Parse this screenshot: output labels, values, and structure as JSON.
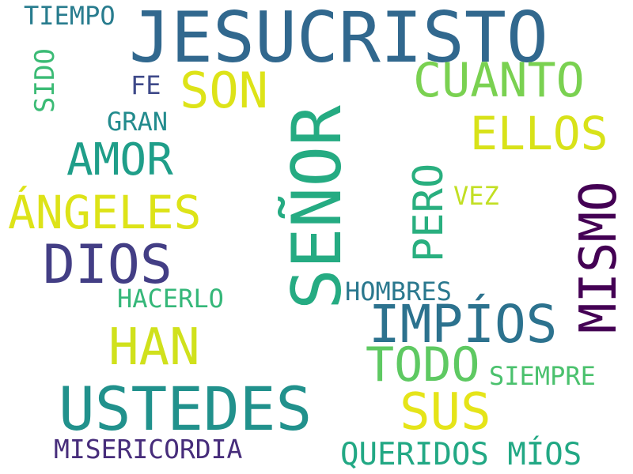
{
  "words": [
    {
      "text": "JESUCRISTO",
      "color": "#31688e"
    },
    {
      "text": "SEÑOR",
      "color": "#25ab82"
    },
    {
      "text": "USTEDES",
      "color": "#21918c"
    },
    {
      "text": "IMPÍOS",
      "color": "#2c728e"
    },
    {
      "text": "MISMO",
      "color": "#440154"
    },
    {
      "text": "DIOS",
      "color": "#433e85"
    },
    {
      "text": "HAN",
      "color": "#d0e11c"
    },
    {
      "text": "SUS",
      "color": "#e5e419"
    },
    {
      "text": "TODO",
      "color": "#5ec962"
    },
    {
      "text": "SON",
      "color": "#dde318"
    },
    {
      "text": "CUANTO",
      "color": "#7ad151"
    },
    {
      "text": "ÁNGELES",
      "color": "#dde318"
    },
    {
      "text": "ELLOS",
      "color": "#d8e219"
    },
    {
      "text": "AMOR",
      "color": "#1f9e89"
    },
    {
      "text": "PERO",
      "color": "#29af7f"
    },
    {
      "text": "QUERIDOS MÍOS",
      "color": "#22a884"
    },
    {
      "text": "MISERICORDIA",
      "color": "#472d7b"
    },
    {
      "text": "SIEMPRE",
      "color": "#4ac16d"
    },
    {
      "text": "HOMBRES",
      "color": "#2a788e"
    },
    {
      "text": "HACERLO",
      "color": "#35b779"
    },
    {
      "text": "TIEMPO",
      "color": "#287c8e"
    },
    {
      "text": "GRAN",
      "color": "#228b8d"
    },
    {
      "text": "FE",
      "color": "#3e4989"
    },
    {
      "text": "VEZ",
      "color": "#c2df23"
    },
    {
      "text": "SIDO",
      "color": "#3bbb75"
    }
  ]
}
